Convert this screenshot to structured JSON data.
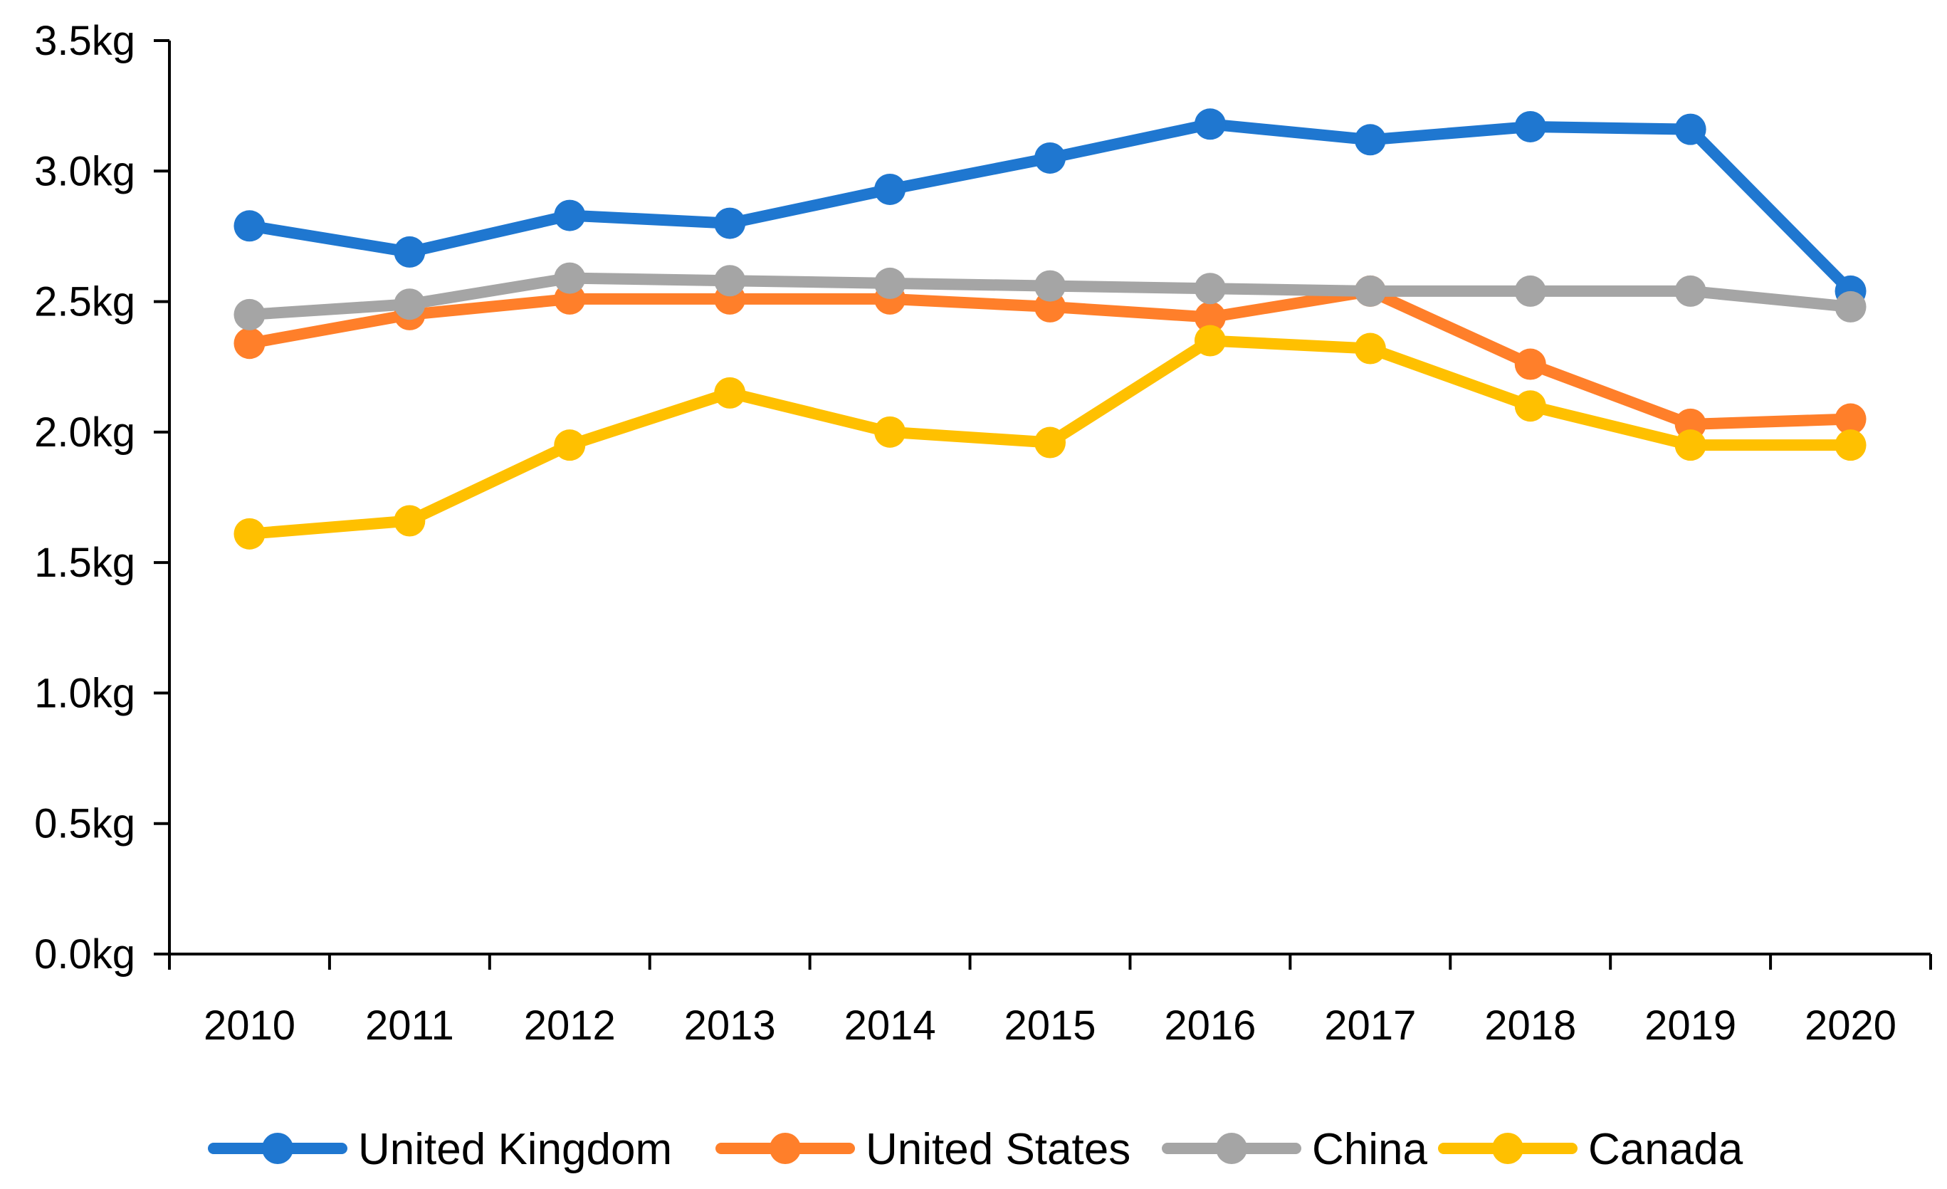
{
  "chart_data": {
    "type": "line",
    "title": "",
    "xlabel": "",
    "ylabel": "",
    "categories": [
      "2010",
      "2011",
      "2012",
      "2013",
      "2014",
      "2015",
      "2016",
      "2017",
      "2018",
      "2019",
      "2020"
    ],
    "ylim": [
      0,
      3.5
    ],
    "yticks": [
      0,
      0.5,
      1.0,
      1.5,
      2.0,
      2.5,
      3.0,
      3.5
    ],
    "ytick_labels": [
      "0.0kg",
      "0.5kg",
      "1.0kg",
      "1.5kg",
      "2.0kg",
      "2.5kg",
      "3.0kg",
      "3.5kg"
    ],
    "grid": false,
    "legend_position": "bottom",
    "series": [
      {
        "name": "United Kingdom",
        "color": "#1f77d0",
        "values": [
          2.79,
          2.69,
          2.83,
          2.8,
          2.93,
          3.05,
          3.18,
          3.12,
          3.17,
          3.16,
          2.54
        ]
      },
      {
        "name": "United States",
        "color": "#ff7f2a",
        "values": [
          2.34,
          2.45,
          2.51,
          2.51,
          2.51,
          2.48,
          2.44,
          2.54,
          2.26,
          2.03,
          2.05
        ]
      },
      {
        "name": "China",
        "color": "#a5a5a5",
        "values": [
          2.45,
          2.49,
          2.59,
          2.58,
          2.57,
          2.56,
          2.55,
          2.54,
          2.54,
          2.54,
          2.48
        ]
      },
      {
        "name": "Canada",
        "color": "#ffc000",
        "values": [
          1.61,
          1.66,
          1.95,
          2.15,
          2.0,
          1.96,
          2.35,
          2.32,
          2.1,
          1.95,
          1.95
        ]
      }
    ]
  }
}
